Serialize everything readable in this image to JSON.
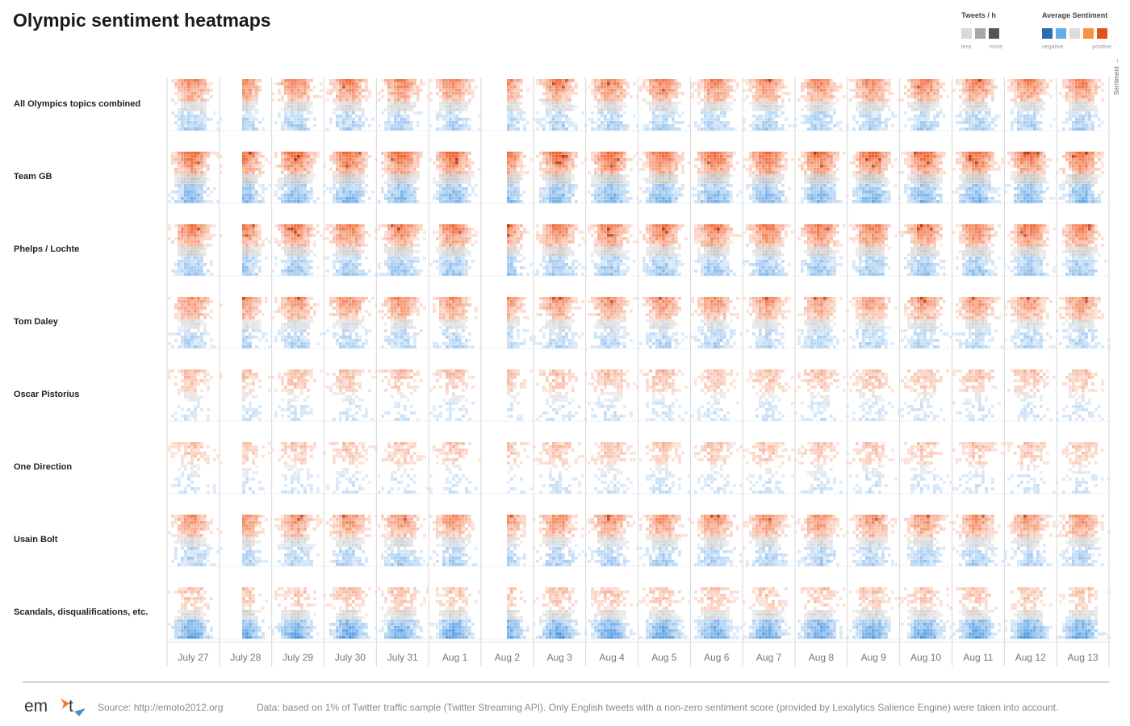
{
  "title": "Olympic sentiment heatmaps",
  "legend": {
    "tweets_title": "Tweets / h",
    "tweets_less": "less",
    "tweets_more": "more",
    "tweets_colors": [
      "#d9d9d9",
      "#a6a6a6",
      "#555555"
    ],
    "sentiment_title": "Average Sentiment",
    "sentiment_negative": "negative",
    "sentiment_positive": "positive",
    "sentiment_colors": [
      "#2b6cb0",
      "#63aee8",
      "#dcdcdc",
      "#f7914a",
      "#e0521a"
    ]
  },
  "chart_data": {
    "type": "heatmap",
    "title": "Olympic sentiment heatmaps",
    "x_axis": "time (hourly, July 27 – Aug 13)",
    "y_axis_label": "Sentiment",
    "days": [
      "July 27",
      "July 28",
      "July 29",
      "July 30",
      "July 31",
      "Aug 1",
      "Aug 2",
      "Aug 3",
      "Aug 4",
      "Aug 5",
      "Aug 6",
      "Aug 7",
      "Aug 8",
      "Aug 9",
      "Aug 10",
      "Aug 11",
      "Aug 12",
      "Aug 13"
    ],
    "gaps": [
      [
        "July 27",
        "July 28"
      ],
      [
        "Aug 1",
        "Aug 2"
      ]
    ],
    "rows": [
      {
        "label": "All Olympics topics combined",
        "pos": 0.8,
        "neg": 0.45
      },
      {
        "label": "Team GB",
        "pos": 0.95,
        "neg": 0.7
      },
      {
        "label": "Phelps / Lochte",
        "pos": 0.85,
        "neg": 0.55
      },
      {
        "label": "Tom Daley",
        "pos": 0.7,
        "neg": 0.4
      },
      {
        "label": "Oscar Pistorius",
        "pos": 0.4,
        "neg": 0.2
      },
      {
        "label": "One Direction",
        "pos": 0.35,
        "neg": 0.2
      },
      {
        "label": "Usain Bolt",
        "pos": 0.7,
        "neg": 0.45
      },
      {
        "label": "Scandals, disqualifications, etc.",
        "pos": 0.35,
        "neg": 0.85
      }
    ]
  },
  "axis_side_label": "Sentiment",
  "axis_arrow": "→",
  "footer": {
    "logo": "emoto",
    "source": "Source: http://emoto2012.org",
    "note": "Data: based on 1% of Twitter traffic sample (Twitter Streaming API). Only English tweets with a non-zero sentiment score (provided by Lexalytics Salience Engine) were taken into account."
  }
}
